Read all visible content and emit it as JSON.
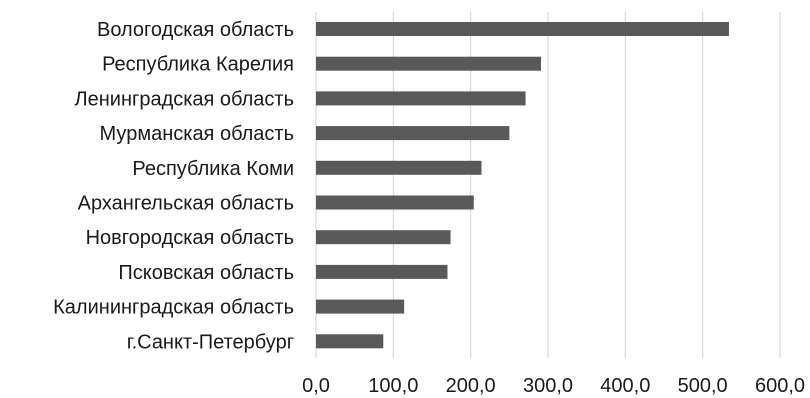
{
  "chart_data": {
    "type": "bar",
    "orientation": "horizontal",
    "categories": [
      "Вологодская область",
      "Республика Карелия",
      "Ленинградская область",
      "Мурманская область",
      "Республика Коми",
      "Архангельская область",
      "Новгородская область",
      "Псковская область",
      "Калининградская область",
      "г.Санкт-Петербург"
    ],
    "values": [
      534,
      291,
      271,
      250,
      214,
      204,
      174,
      170,
      114,
      87
    ],
    "title": "",
    "xlabel": "",
    "ylabel": "",
    "xlim": [
      0,
      600
    ],
    "xticks": [
      0,
      100,
      200,
      300,
      400,
      500,
      600
    ],
    "xtick_labels": [
      "0,0",
      "100,0",
      "200,0",
      "300,0",
      "400,0",
      "500,0",
      "600,0"
    ],
    "grid": true,
    "legend": "none",
    "bar_color": "#595959",
    "grid_color": "#d0d0d0"
  }
}
